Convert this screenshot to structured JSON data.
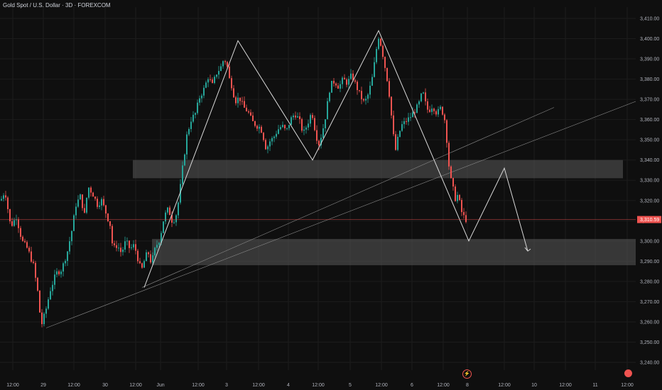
{
  "header": {
    "title": "Gold Spot / U.S. Dollar · 3D · FOREXCOM"
  },
  "colors": {
    "up": "#26a69a",
    "down": "#ef5350",
    "background": "#0f0f0f",
    "grid": "#1c1c1c",
    "drawing": "#d9d9d9",
    "zone": "#3a3a3a",
    "price_line": "#ef5350"
  },
  "chart_data": {
    "type": "candlestick",
    "ylim": [
      3235,
      3415
    ],
    "y_ticks": [
      "3,410.00",
      "3,400.00",
      "3,390.00",
      "3,380.00",
      "3,370.00",
      "3,360.00",
      "3,350.00",
      "3,340.00",
      "3,330.00",
      "3,320.00",
      "3,310.00",
      "3,300.00",
      "3,290.00",
      "3,280.00",
      "3,270.00",
      "3,260.00",
      "3,250.00",
      "3,240.00"
    ],
    "x_ticks": [
      "12:00",
      "29",
      "12:00",
      "30",
      "12:00",
      "Jun",
      "12:00",
      "3",
      "12:00",
      "4",
      "12:00",
      "5",
      "12:00",
      "6",
      "12:00",
      "8",
      "12:00",
      "10",
      "12:00",
      "11",
      "12:00"
    ],
    "last_price": {
      "value": 3310.59,
      "label": "3,310.59"
    },
    "resistance_zone": [
      3331,
      3340
    ],
    "support_zone": [
      3288,
      3301
    ],
    "candles_summary": {
      "bars": 222,
      "low": 3246,
      "high": 3404
    },
    "drawing_pattern_prices": [
      3277,
      3399,
      3340,
      3404,
      3300,
      3336,
      3295
    ]
  }
}
